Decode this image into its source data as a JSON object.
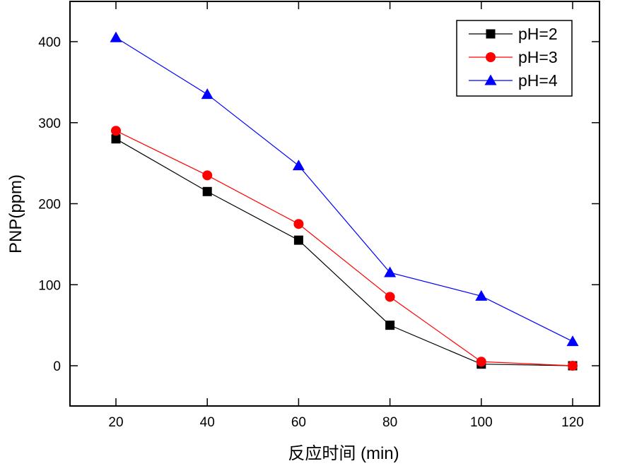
{
  "chart_data": {
    "type": "line",
    "title": "",
    "xlabel": "反应时间 (min)",
    "ylabel": "PNP(ppm)",
    "xlim": [
      10,
      130
    ],
    "ylim": [
      -50,
      450
    ],
    "x_ticks": [
      20,
      40,
      60,
      80,
      100,
      120
    ],
    "x_tick_labels": [
      "20",
      "40",
      "60",
      "80",
      "100",
      "120"
    ],
    "y_ticks": [
      0,
      100,
      200,
      300,
      400
    ],
    "y_tick_labels": [
      "0",
      "100",
      "200",
      "300",
      "400"
    ],
    "grid": false,
    "legend_position": "top-right",
    "x": [
      20,
      40,
      60,
      80,
      100,
      120
    ],
    "series": [
      {
        "name": "pH=2",
        "color": "#000000",
        "marker": "square",
        "values": [
          280,
          215,
          155,
          50,
          2,
          0
        ]
      },
      {
        "name": "pH=3",
        "color": "#ff0000",
        "marker": "circle",
        "values": [
          290,
          235,
          175,
          85,
          5,
          0
        ]
      },
      {
        "name": "pH=4",
        "color": "#0000ff",
        "marker": "triangle",
        "values": [
          405,
          335,
          247,
          115,
          86,
          30
        ]
      }
    ]
  }
}
